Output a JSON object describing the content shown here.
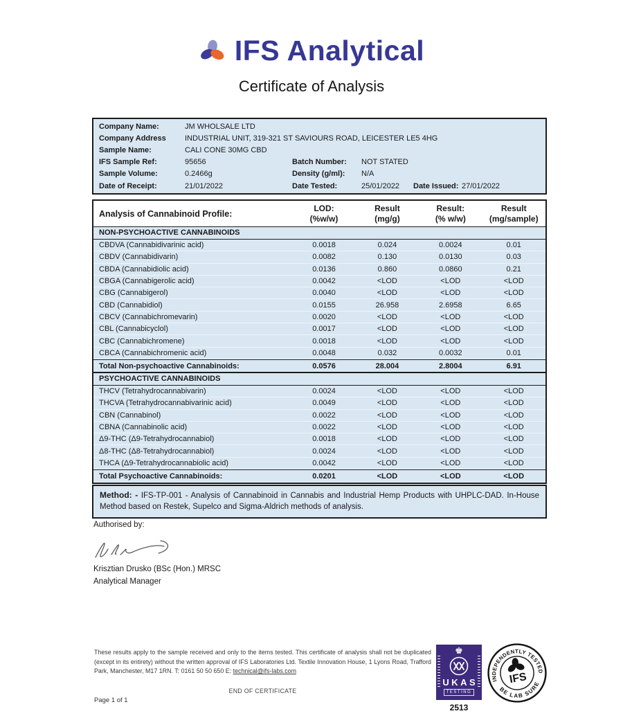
{
  "header": {
    "brand": "IFS Analytical",
    "title": "Certificate of Analysis"
  },
  "info": {
    "company_name": {
      "label": "Company Name:",
      "value": "JM WHOLSALE LTD"
    },
    "company_address": {
      "label": "Company Address",
      "value": "INDUSTRIAL UNIT, 319-321 ST SAVIOURS ROAD, LEICESTER LE5 4HG"
    },
    "sample_name": {
      "label": "Sample Name:",
      "value": "CALI CONE 30MG CBD"
    },
    "sample_ref": {
      "label": "IFS Sample Ref:",
      "value": "95656",
      "label2": "Batch Number:",
      "value2": "NOT STATED"
    },
    "sample_volume": {
      "label": "Sample Volume:",
      "value": "0.2466g",
      "label2": "Density (g/ml):",
      "value2": "N/A"
    },
    "date_receipt": {
      "label": "Date of Receipt:",
      "value": "21/01/2022",
      "label2": "Date Tested:",
      "value2": "25/01/2022",
      "label3": "Date Issued:",
      "value3": "27/01/2022"
    }
  },
  "analysis": {
    "title": "Analysis of Cannabinoid Profile:",
    "columns": [
      {
        "line1": "LOD:",
        "line2": "(%w/w)"
      },
      {
        "line1": "Result",
        "line2": "(mg/g)"
      },
      {
        "line1": "Result:",
        "line2": "(% w/w)"
      },
      {
        "line1": "Result",
        "line2": "(mg/sample)"
      }
    ],
    "non_psychoactive": {
      "section": "NON-PSYCHOACTIVE CANNABINOIDS",
      "rows": [
        {
          "name": "CBDVA (Cannabidivarinic acid)",
          "lod": "0.0018",
          "mg_g": "0.024",
          "pct": "0.0024",
          "mg_sample": "0.01"
        },
        {
          "name": "CBDV (Cannabidivarin)",
          "lod": "0.0082",
          "mg_g": "0.130",
          "pct": "0.0130",
          "mg_sample": "0.03"
        },
        {
          "name": "CBDA (Cannabidiolic acid)",
          "lod": "0.0136",
          "mg_g": "0.860",
          "pct": "0.0860",
          "mg_sample": "0.21"
        },
        {
          "name": "CBGA (Cannabigerolic acid)",
          "lod": "0.0042",
          "mg_g": "<LOD",
          "pct": "<LOD",
          "mg_sample": "<LOD"
        },
        {
          "name": "CBG (Cannabigerol)",
          "lod": "0.0040",
          "mg_g": "<LOD",
          "pct": "<LOD",
          "mg_sample": "<LOD"
        },
        {
          "name": "CBD (Cannabidiol)",
          "lod": "0.0155",
          "mg_g": "26.958",
          "pct": "2.6958",
          "mg_sample": "6.65"
        },
        {
          "name": "CBCV (Cannabichromevarin)",
          "lod": "0.0020",
          "mg_g": "<LOD",
          "pct": "<LOD",
          "mg_sample": "<LOD"
        },
        {
          "name": "CBL (Cannabicyclol)",
          "lod": "0.0017",
          "mg_g": "<LOD",
          "pct": "<LOD",
          "mg_sample": "<LOD"
        },
        {
          "name": "CBC (Cannabichromene)",
          "lod": "0.0018",
          "mg_g": "<LOD",
          "pct": "<LOD",
          "mg_sample": "<LOD"
        },
        {
          "name": "CBCA (Cannabichromenic acid)",
          "lod": "0.0048",
          "mg_g": "0.032",
          "pct": "0.0032",
          "mg_sample": "0.01"
        }
      ],
      "total": {
        "name": "Total Non-psychoactive Cannabinoids:",
        "lod": "0.0576",
        "mg_g": "28.004",
        "pct": "2.8004",
        "mg_sample": "6.91"
      }
    },
    "psychoactive": {
      "section": "PSYCHOACTIVE CANNABINOIDS",
      "rows": [
        {
          "name": "THCV (Tetrahydrocannabivarin)",
          "lod": "0.0024",
          "mg_g": "<LOD",
          "pct": "<LOD",
          "mg_sample": "<LOD"
        },
        {
          "name": "THCVA (Tetrahydrocannabivarinic acid)",
          "lod": "0.0049",
          "mg_g": "<LOD",
          "pct": "<LOD",
          "mg_sample": "<LOD"
        },
        {
          "name": "CBN (Cannabinol)",
          "lod": "0.0022",
          "mg_g": "<LOD",
          "pct": "<LOD",
          "mg_sample": "<LOD"
        },
        {
          "name": "CBNA (Cannabinolic acid)",
          "lod": "0.0022",
          "mg_g": "<LOD",
          "pct": "<LOD",
          "mg_sample": "<LOD"
        },
        {
          "name": "Δ9-THC (Δ9-Tetrahydrocannabiol)",
          "lod": "0.0018",
          "mg_g": "<LOD",
          "pct": "<LOD",
          "mg_sample": "<LOD"
        },
        {
          "name": "Δ8-THC (Δ8-Tetrahydrocannabiol)",
          "lod": "0.0024",
          "mg_g": "<LOD",
          "pct": "<LOD",
          "mg_sample": "<LOD"
        },
        {
          "name": "THCA (Δ9-Tetrahydrocannabiolic acid)",
          "lod": "0.0042",
          "mg_g": "<LOD",
          "pct": "<LOD",
          "mg_sample": "<LOD"
        }
      ],
      "total": {
        "name": "Total Psychoactive Cannabinoids:",
        "lod": "0.0201",
        "mg_g": "<LOD",
        "pct": "<LOD",
        "mg_sample": "<LOD"
      }
    }
  },
  "method": {
    "label": "Method: -",
    "text": " IFS-TP-001 - Analysis of Cannabinoid in Cannabis and Industrial Hemp Products with UHPLC-DAD. In-House Method based on Restek, Supelco and Sigma-Aldrich methods of analysis."
  },
  "authorisation": {
    "heading": "Authorised by:",
    "name": "Krisztian Drusko (BSc (Hon.) MRSC",
    "role": "Analytical Manager"
  },
  "footer": {
    "disclaimer": "These results apply to the sample received and only to the items tested. This certificate of analysis shall not be duplicated (except in its entirety) without the written approval of IFS Laboratories Ltd. Textile Innovation House, 1 Lyons Road, Trafford Park, Manchester, M17 1RN. T: 0161 50 50 650 E: ",
    "email": "technical@ifs-labs.com",
    "end_text": "END OF CERTIFICATE",
    "page": "Page 1 of 1"
  },
  "ukas": {
    "name": "UKAS",
    "sub": "TESTING",
    "number": "2513"
  },
  "stamp": {
    "top": "INDEPENDENTLY TESTED",
    "bottom": "BE LAB SURE",
    "center": "IFS"
  },
  "colors": {
    "brand_blue": "#373895",
    "table_bg": "#d9e7f3",
    "ukas_purple": "#3e2b7e",
    "logo_lavender": "#8f93cc",
    "logo_navy": "#3b3a99",
    "logo_orange": "#e8682a"
  }
}
